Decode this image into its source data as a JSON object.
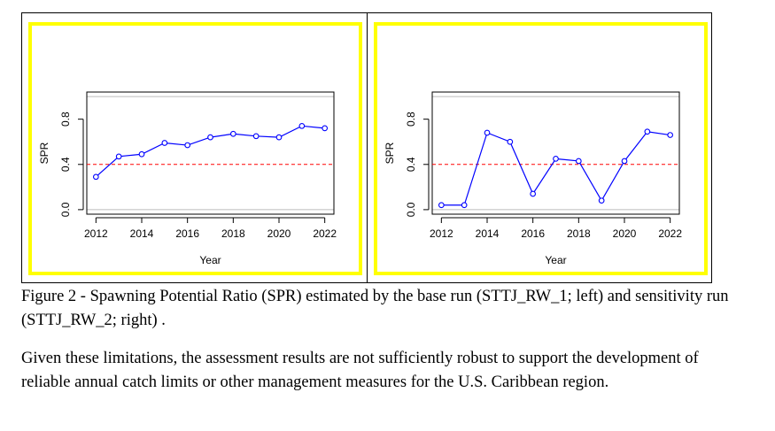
{
  "chart_data": [
    {
      "type": "line",
      "panel": "left",
      "title": "",
      "xlabel": "Year",
      "ylabel": "SPR",
      "x": [
        2012,
        2013,
        2014,
        2015,
        2016,
        2017,
        2018,
        2019,
        2020,
        2021,
        2022
      ],
      "values": [
        0.29,
        0.47,
        0.49,
        0.59,
        0.57,
        0.64,
        0.67,
        0.65,
        0.64,
        0.74,
        0.72
      ],
      "xticks": [
        2012,
        2014,
        2016,
        2018,
        2020,
        2022
      ],
      "yticks": [
        0.0,
        0.4,
        0.8
      ],
      "ytick_labels": [
        "0.0",
        "0.4",
        "0.8"
      ],
      "xlim": [
        2011.6,
        2022.4
      ],
      "ylim": [
        -0.04,
        1.04
      ],
      "reference_line": 0.4,
      "grey_lines": [
        0.0,
        1.0
      ],
      "colors": {
        "series": "#0000ff",
        "reference": "#ff0000",
        "grey": "#bbbbbb"
      }
    },
    {
      "type": "line",
      "panel": "right",
      "title": "",
      "xlabel": "Year",
      "ylabel": "SPR",
      "x": [
        2012,
        2013,
        2014,
        2015,
        2016,
        2017,
        2018,
        2019,
        2020,
        2021,
        2022
      ],
      "values": [
        0.04,
        0.04,
        0.68,
        0.6,
        0.14,
        0.45,
        0.43,
        0.08,
        0.43,
        0.69,
        0.66
      ],
      "xticks": [
        2012,
        2014,
        2016,
        2018,
        2020,
        2022
      ],
      "yticks": [
        0.0,
        0.4,
        0.8
      ],
      "ytick_labels": [
        "0.0",
        "0.4",
        "0.8"
      ],
      "xlim": [
        2011.6,
        2022.4
      ],
      "ylim": [
        -0.04,
        1.04
      ],
      "reference_line": 0.4,
      "grey_lines": [
        0.0,
        1.0
      ],
      "colors": {
        "series": "#0000ff",
        "reference": "#ff0000",
        "grey": "#bbbbbb"
      }
    }
  ],
  "caption": {
    "text": "Figure 2 - Spawning Potential Ratio (SPR) estimated by the base run (STTJ_RW_1; left) and sensitivity run (STTJ_RW_2; right) ."
  },
  "paragraph": {
    "text": "Given these limitations, the assessment results are not sufficiently robust to support the development of reliable annual catch limits or other management measures for the U.S. Caribbean region."
  },
  "colors": {
    "panel_border": "#ffff00"
  }
}
